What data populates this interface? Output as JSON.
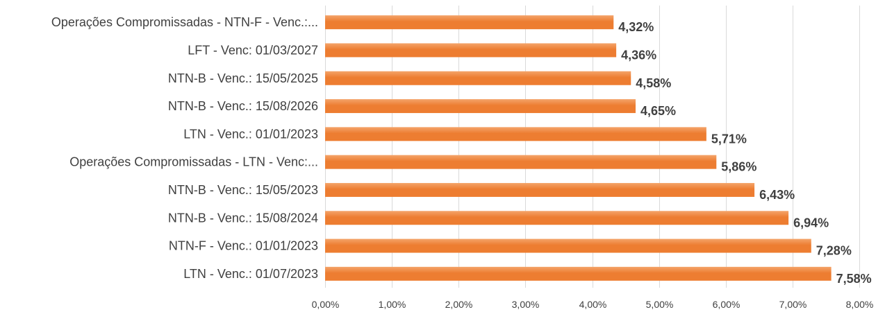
{
  "chart_data": {
    "type": "bar",
    "orientation": "horizontal",
    "title": "",
    "xlabel": "",
    "ylabel": "",
    "categories": [
      "Operações Compromissadas - NTN-F - Venc.:...",
      "LFT - Venc: 01/03/2027",
      "NTN-B - Venc.: 15/05/2025",
      "NTN-B - Venc.: 15/08/2026",
      "LTN - Venc.: 01/01/2023",
      "Operações Compromissadas - LTN - Venc:...",
      "NTN-B - Venc.: 15/05/2023",
      "NTN-B - Venc.: 15/08/2024",
      "NTN-F - Venc.: 01/01/2023",
      "LTN - Venc.: 01/07/2023"
    ],
    "values": [
      4.32,
      4.36,
      4.58,
      4.65,
      5.71,
      5.86,
      6.43,
      6.94,
      7.28,
      7.58
    ],
    "value_labels": [
      "4,32%",
      "4,36%",
      "4,58%",
      "4,65%",
      "5,71%",
      "5,86%",
      "6,43%",
      "6,94%",
      "7,28%",
      "7,58%"
    ],
    "xlim": [
      0,
      8
    ],
    "xticks": [
      0,
      1,
      2,
      3,
      4,
      5,
      6,
      7,
      8
    ],
    "xtick_labels": [
      "0,00%",
      "1,00%",
      "2,00%",
      "3,00%",
      "4,00%",
      "5,00%",
      "6,00%",
      "7,00%",
      "8,00%"
    ],
    "grid": true,
    "legend": "none",
    "bar_color": "#ED7D31",
    "bar_highlight_color": "#F4A46A"
  }
}
